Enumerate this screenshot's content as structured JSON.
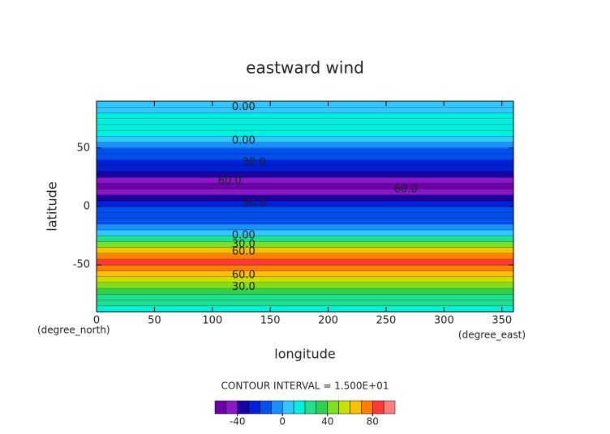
{
  "chart_data": {
    "type": "contour",
    "title": "eastward wind",
    "x_label": "longitude",
    "y_label": "latitude",
    "x_unit": "(degree_east)",
    "y_unit": "(degree_north)",
    "contour_interval": "CONTOUR INTERVAL = 1.500E+01",
    "xlim": [
      0,
      360
    ],
    "ylim": [
      -90,
      90
    ],
    "xticks": [
      0,
      50,
      100,
      150,
      200,
      250,
      300,
      350
    ],
    "yticks": [
      -50,
      0,
      50
    ],
    "latitudes": [
      -87.5,
      -82.5,
      -77.5,
      -72.5,
      -67.5,
      -62.5,
      -57.5,
      -52.5,
      -47.5,
      -42.5,
      -37.5,
      -32.5,
      -27.5,
      -22.5,
      -17.5,
      -12.5,
      -7.5,
      -2.5,
      2.5,
      7.5,
      12.5,
      17.5,
      22.5,
      27.5,
      32.5,
      37.5,
      42.5,
      47.5,
      52.5,
      57.5,
      62.5,
      67.5,
      72.5,
      77.5,
      82.5,
      87.5
    ],
    "values": [
      15,
      20,
      25,
      30,
      40,
      50,
      60,
      70,
      80,
      75,
      60,
      45,
      25,
      5,
      -5,
      -15,
      -20,
      -20,
      -25,
      -35,
      -50,
      -58,
      -50,
      -40,
      -30,
      -25,
      -20,
      -15,
      -5,
      5,
      10,
      10,
      10,
      10,
      5,
      0
    ],
    "levels": [
      -60,
      -50,
      -40,
      -30,
      -20,
      -10,
      0,
      10,
      20,
      30,
      40,
      50,
      60,
      70,
      80,
      90,
      100
    ],
    "colors": [
      "#6a00a8",
      "#8a18c8",
      "#1a00a0",
      "#0020d8",
      "#0050f0",
      "#1890ff",
      "#30c8ff",
      "#00f0e0",
      "#20e090",
      "#30d050",
      "#80e020",
      "#c8e000",
      "#ffc000",
      "#ff8000",
      "#ff3838",
      "#ff8080"
    ],
    "colorbar_ticks": [
      -40,
      0,
      40,
      80
    ],
    "annotations": [
      {
        "x": 127,
        "y": 84.7,
        "label": "0.00"
      },
      {
        "x": 127,
        "y": 56,
        "label": "0.00"
      },
      {
        "x": 136,
        "y": 37.5,
        "label": "30.0"
      },
      {
        "x": 115,
        "y": 21.5,
        "label": "60.0"
      },
      {
        "x": 267,
        "y": 14.6,
        "label": "60.0"
      },
      {
        "x": 136,
        "y": 2.8,
        "label": "30.0"
      },
      {
        "x": 127,
        "y": -25,
        "label": "0.00"
      },
      {
        "x": 127,
        "y": -32.6,
        "label": "30.0"
      },
      {
        "x": 127,
        "y": -38.9,
        "label": "60.0"
      },
      {
        "x": 127,
        "y": -59,
        "label": "60.0"
      },
      {
        "x": 127,
        "y": -68.8,
        "label": "30.0"
      }
    ]
  }
}
